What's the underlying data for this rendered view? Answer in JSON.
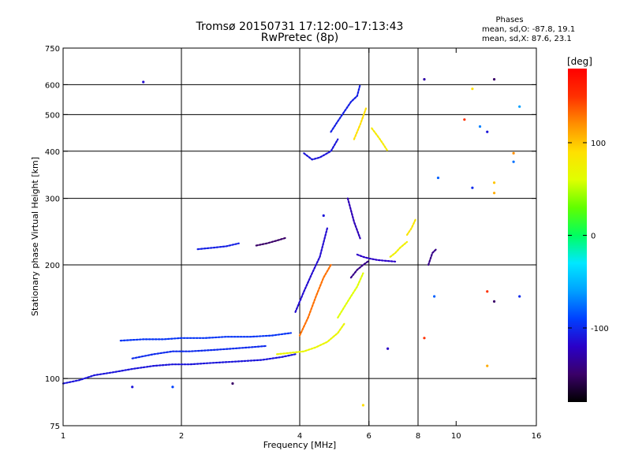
{
  "header": {
    "title": "Tromsø 20150731 17:12:00–17:13:43",
    "subtitle": "RwPretec (8p)",
    "stats_title": "Phases",
    "stats_o": "mean, sd,O: -87.8, 19.1",
    "stats_x": "mean, sd,X:  87.6, 23.1"
  },
  "colorbar": {
    "label": "[deg]",
    "range": [
      -180,
      180
    ],
    "ticks": [
      {
        "value": 100,
        "label": "100"
      },
      {
        "value": 0,
        "label": "0"
      },
      {
        "value": -100,
        "label": "-100"
      }
    ],
    "colors": [
      "#000000",
      "#3a0068",
      "#2a00c8",
      "#0040ff",
      "#00a0ff",
      "#00e8ff",
      "#00ff60",
      "#60ff00",
      "#e0ff00",
      "#ffe000",
      "#ff9000",
      "#ff3000",
      "#ff0000"
    ]
  },
  "chart_data": {
    "type": "scatter",
    "title": "Tromsø 20150731 17:12:00–17:13:43",
    "subtitle": "RwPretec (8p)",
    "xlabel": "Frequency [MHz]",
    "ylabel": "Stationary phase Virtual Height [km]",
    "xscale": "log",
    "yscale": "log",
    "xlim": [
      1,
      16
    ],
    "ylim": [
      75,
      750
    ],
    "grid": true,
    "x_ticks": [
      {
        "value": 1,
        "label": "1"
      },
      {
        "value": 2,
        "label": "2"
      },
      {
        "value": 4,
        "label": "4"
      },
      {
        "value": 6,
        "label": "6"
      },
      {
        "value": 8,
        "label": "8"
      },
      {
        "value": 10,
        "label": "10"
      },
      {
        "value": 16,
        "label": "16"
      }
    ],
    "x_gridlines": [
      2,
      4,
      6,
      8
    ],
    "y_ticks": [
      {
        "value": 75,
        "label": "75"
      },
      {
        "value": 100,
        "label": "100"
      },
      {
        "value": 200,
        "label": "200"
      },
      {
        "value": 300,
        "label": "300"
      },
      {
        "value": 400,
        "label": "400"
      },
      {
        "value": 500,
        "label": "500"
      },
      {
        "value": 600,
        "label": "600"
      },
      {
        "value": 750,
        "label": "750"
      }
    ],
    "y_gridlines": [
      100,
      200,
      300,
      400,
      500,
      600
    ],
    "color_by": "phase (deg)",
    "traces": [
      {
        "x": [
          1.0,
          1.1,
          1.2,
          1.35,
          1.5,
          1.7,
          1.9,
          2.1,
          2.4,
          2.8,
          3.2,
          3.6,
          3.9
        ],
        "y": [
          97,
          99,
          102,
          104,
          106,
          108,
          109,
          109,
          110,
          111,
          112,
          114,
          116
        ],
        "phase": -110
      },
      {
        "x": [
          1.4,
          1.6,
          1.8,
          2.0,
          2.3,
          2.6,
          3.0,
          3.4,
          3.8
        ],
        "y": [
          126,
          127,
          127,
          128,
          128,
          129,
          129,
          130,
          132
        ],
        "phase": -95
      },
      {
        "x": [
          1.5,
          1.7,
          1.9,
          2.1,
          2.4,
          2.7,
          3.0,
          3.3
        ],
        "y": [
          113,
          116,
          118,
          118,
          119,
          120,
          121,
          122
        ],
        "phase": -100
      },
      {
        "x": [
          2.2,
          2.4,
          2.6,
          2.8
        ],
        "y": [
          220,
          222,
          224,
          228
        ],
        "phase": -105
      },
      {
        "x": [
          3.1,
          3.3,
          3.5,
          3.7
        ],
        "y": [
          225,
          228,
          232,
          236
        ],
        "phase": -150
      },
      {
        "x": [
          3.5,
          3.8,
          4.1,
          4.4,
          4.7,
          5.0,
          5.2
        ],
        "y": [
          116,
          117,
          118,
          121,
          125,
          132,
          140
        ],
        "phase": 70
      },
      {
        "x": [
          4.0,
          4.2,
          4.4,
          4.6,
          4.8
        ],
        "y": [
          130,
          145,
          165,
          185,
          200
        ],
        "phase": 130
      },
      {
        "x": [
          3.9,
          4.1,
          4.3,
          4.5,
          4.7
        ],
        "y": [
          150,
          170,
          190,
          210,
          250
        ],
        "phase": -115
      },
      {
        "x": [
          4.1,
          4.3,
          4.5,
          4.8,
          5.0
        ],
        "y": [
          395,
          380,
          385,
          400,
          430
        ],
        "phase": -110
      },
      {
        "x": [
          4.8,
          5.0,
          5.2,
          5.4,
          5.6,
          5.7
        ],
        "y": [
          450,
          480,
          510,
          540,
          560,
          600
        ],
        "phase": -105
      },
      {
        "x": [
          5.3,
          5.5,
          5.7
        ],
        "y": [
          300,
          260,
          235
        ],
        "phase": -125
      },
      {
        "x": [
          5.5,
          5.7,
          5.9
        ],
        "y": [
          430,
          470,
          520
        ],
        "phase": 90
      },
      {
        "x": [
          5.6,
          5.8,
          6.0,
          6.3,
          6.6,
          7.0
        ],
        "y": [
          213,
          210,
          208,
          206,
          205,
          204
        ],
        "phase": -120
      },
      {
        "x": [
          5.4,
          5.6,
          5.8,
          6.0
        ],
        "y": [
          185,
          194,
          200,
          205
        ],
        "phase": -140
      },
      {
        "x": [
          5.0,
          5.2,
          5.4,
          5.6,
          5.8
        ],
        "y": [
          145,
          155,
          165,
          175,
          190
        ],
        "phase": 60
      },
      {
        "x": [
          6.1,
          6.3,
          6.5,
          6.7
        ],
        "y": [
          460,
          440,
          420,
          400
        ],
        "phase": 80
      },
      {
        "x": [
          7.5,
          7.7,
          7.9
        ],
        "y": [
          240,
          250,
          265
        ],
        "phase": 85
      },
      {
        "x": [
          6.8,
          7.0,
          7.2,
          7.5
        ],
        "y": [
          210,
          215,
          222,
          230
        ],
        "phase": 75
      },
      {
        "x": [
          8.5,
          8.7,
          8.9
        ],
        "y": [
          200,
          215,
          220
        ],
        "phase": -140
      }
    ],
    "points": [
      {
        "x": 1.6,
        "y": 610,
        "phase": -115
      },
      {
        "x": 1.5,
        "y": 95,
        "phase": -110
      },
      {
        "x": 1.9,
        "y": 95,
        "phase": -90
      },
      {
        "x": 2.7,
        "y": 97,
        "phase": -150
      },
      {
        "x": 4.6,
        "y": 270,
        "phase": -110
      },
      {
        "x": 5.8,
        "y": 85,
        "phase": 90
      },
      {
        "x": 8.3,
        "y": 620,
        "phase": -130
      },
      {
        "x": 11.0,
        "y": 585,
        "phase": 90
      },
      {
        "x": 12.5,
        "y": 620,
        "phase": -150
      },
      {
        "x": 10.5,
        "y": 485,
        "phase": 150
      },
      {
        "x": 11.5,
        "y": 465,
        "phase": -70
      },
      {
        "x": 12.0,
        "y": 450,
        "phase": -110
      },
      {
        "x": 14.5,
        "y": 525,
        "phase": -60
      },
      {
        "x": 14.0,
        "y": 395,
        "phase": 120
      },
      {
        "x": 14.0,
        "y": 375,
        "phase": -75
      },
      {
        "x": 11.0,
        "y": 320,
        "phase": -100
      },
      {
        "x": 12.5,
        "y": 330,
        "phase": 100
      },
      {
        "x": 12.5,
        "y": 310,
        "phase": 110
      },
      {
        "x": 9.0,
        "y": 340,
        "phase": -80
      },
      {
        "x": 12.0,
        "y": 170,
        "phase": 150
      },
      {
        "x": 12.5,
        "y": 160,
        "phase": -150
      },
      {
        "x": 14.5,
        "y": 165,
        "phase": -100
      },
      {
        "x": 12.0,
        "y": 108,
        "phase": 110
      },
      {
        "x": 8.3,
        "y": 128,
        "phase": 150
      },
      {
        "x": 8.8,
        "y": 165,
        "phase": -80
      },
      {
        "x": 6.7,
        "y": 120,
        "phase": -120
      }
    ]
  }
}
